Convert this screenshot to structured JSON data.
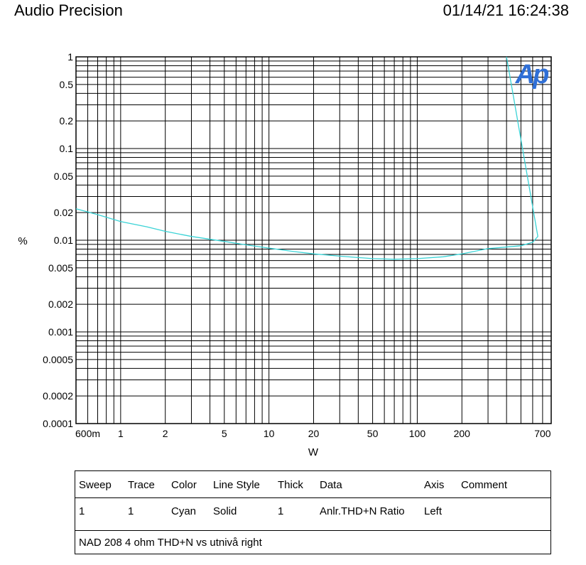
{
  "header": {
    "title": "Audio Precision",
    "timestamp": "01/14/21 16:24:38"
  },
  "logo_text": "Ap",
  "chart_data": {
    "type": "line",
    "xlabel": "W",
    "ylabel": "%",
    "x_scale": "log",
    "y_scale": "log",
    "xlim": [
      0.5,
      800
    ],
    "ylim": [
      0.0001,
      1
    ],
    "grid": true,
    "x_ticks": [
      {
        "value": 0.6,
        "label": "600m"
      },
      {
        "value": 1,
        "label": "1"
      },
      {
        "value": 2,
        "label": "2"
      },
      {
        "value": 5,
        "label": "5"
      },
      {
        "value": 10,
        "label": "10"
      },
      {
        "value": 20,
        "label": "20"
      },
      {
        "value": 50,
        "label": "50"
      },
      {
        "value": 100,
        "label": "100"
      },
      {
        "value": 200,
        "label": "200"
      },
      {
        "value": 700,
        "label": "700"
      }
    ],
    "y_ticks": [
      {
        "value": 1,
        "label": "1"
      },
      {
        "value": 0.5,
        "label": "0.5"
      },
      {
        "value": 0.2,
        "label": "0.2"
      },
      {
        "value": 0.1,
        "label": "0.1"
      },
      {
        "value": 0.05,
        "label": "0.05"
      },
      {
        "value": 0.02,
        "label": "0.02"
      },
      {
        "value": 0.01,
        "label": "0.01"
      },
      {
        "value": 0.005,
        "label": "0.005"
      },
      {
        "value": 0.002,
        "label": "0.002"
      },
      {
        "value": 0.001,
        "label": "0.001"
      },
      {
        "value": 0.0005,
        "label": "0.0005"
      },
      {
        "value": 0.0002,
        "label": "0.0002"
      },
      {
        "value": 0.0001,
        "label": "0.0001"
      }
    ],
    "series": [
      {
        "color": "#3ad3d6",
        "x": [
          0.5,
          0.7,
          1,
          1.5,
          2,
          3,
          5,
          7,
          10,
          15,
          20,
          30,
          50,
          70,
          100,
          150,
          200,
          300,
          500,
          600,
          650,
          400
        ],
        "y": [
          0.022,
          0.019,
          0.016,
          0.014,
          0.0125,
          0.011,
          0.0097,
          0.0089,
          0.0082,
          0.0075,
          0.0071,
          0.0067,
          0.0063,
          0.0062,
          0.0063,
          0.0066,
          0.0071,
          0.0081,
          0.0087,
          0.0095,
          0.011,
          1.0
        ]
      }
    ]
  },
  "legend_table": {
    "headers": [
      "Sweep",
      "Trace",
      "Color",
      "Line Style",
      "Thick",
      "Data",
      "Axis",
      "Comment"
    ],
    "rows": [
      [
        "1",
        "1",
        "Cyan",
        "Solid",
        "1",
        "Anlr.THD+N Ratio",
        "Left",
        ""
      ]
    ],
    "footer": "NAD 208 4 ohm THD+N vs utnivå right"
  }
}
